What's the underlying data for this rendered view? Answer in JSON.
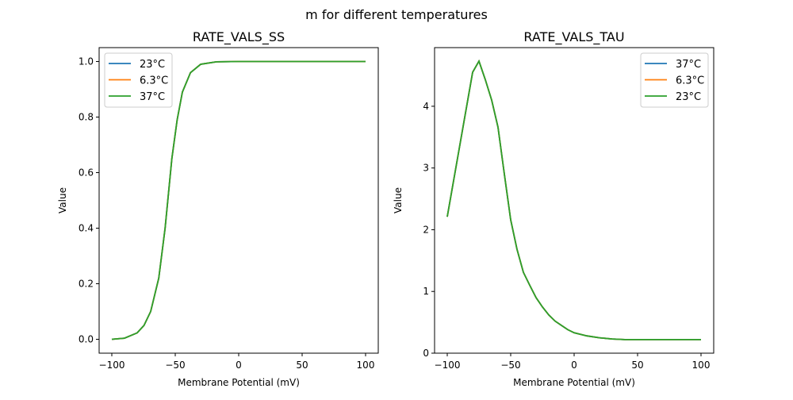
{
  "figure_title": "m for different temperatures",
  "colors": {
    "23C": "#1f77b4",
    "6.3C": "#ff7f0e",
    "37C": "#2ca02c"
  },
  "chart_data": [
    {
      "type": "line",
      "title": "RATE_VALS_SS",
      "xlabel": "Membrane Potential (mV)",
      "ylabel": "Value",
      "xlim": [
        -110,
        110
      ],
      "ylim": [
        -0.05,
        1.05
      ],
      "xticks": [
        -100,
        -50,
        0,
        50,
        100
      ],
      "xtick_labels": [
        "−100",
        "−50",
        "0",
        "50",
        "100"
      ],
      "yticks": [
        0.0,
        0.2,
        0.4,
        0.6,
        0.8,
        1.0
      ],
      "ytick_labels": [
        "0.0",
        "0.2",
        "0.4",
        "0.6",
        "0.8",
        "1.0"
      ],
      "legend_position": "top-left",
      "x": [
        -100,
        -90,
        -80,
        -74.6,
        -69.4,
        -63,
        -58,
        -52.7,
        -48.5,
        -44.4,
        -38,
        -30,
        -17.5,
        0,
        50,
        100
      ],
      "series": [
        {
          "name": "23°C",
          "color_key": "23C",
          "values": [
            0.0,
            0.004,
            0.023,
            0.05,
            0.1,
            0.22,
            0.4,
            0.65,
            0.79,
            0.89,
            0.96,
            0.99,
            0.999,
            1.0,
            1.0,
            1.0
          ]
        },
        {
          "name": "6.3°C",
          "color_key": "6.3C",
          "values": [
            0.0,
            0.004,
            0.023,
            0.05,
            0.1,
            0.22,
            0.4,
            0.65,
            0.79,
            0.89,
            0.96,
            0.99,
            0.999,
            1.0,
            1.0,
            1.0
          ]
        },
        {
          "name": "37°C",
          "color_key": "37C",
          "values": [
            0.0,
            0.004,
            0.023,
            0.05,
            0.1,
            0.22,
            0.4,
            0.65,
            0.79,
            0.89,
            0.96,
            0.99,
            0.999,
            1.0,
            1.0,
            1.0
          ]
        }
      ]
    },
    {
      "type": "line",
      "title": "RATE_VALS_TAU",
      "xlabel": "Membrane Potential (mV)",
      "ylabel": "Value",
      "xlim": [
        -110,
        110
      ],
      "ylim": [
        0,
        4.95
      ],
      "xticks": [
        -100,
        -50,
        0,
        50,
        100
      ],
      "xtick_labels": [
        "−100",
        "−50",
        "0",
        "50",
        "100"
      ],
      "yticks": [
        0,
        1,
        2,
        3,
        4
      ],
      "ytick_labels": [
        "0",
        "1",
        "2",
        "3",
        "4"
      ],
      "legend_position": "top-right",
      "x": [
        -100,
        -90,
        -80,
        -75,
        -70,
        -65,
        -60,
        -55,
        -50,
        -45,
        -40,
        -35,
        -30,
        -25,
        -20,
        -15,
        -10,
        -5,
        0,
        10,
        20,
        30,
        40,
        60,
        80,
        100
      ],
      "series": [
        {
          "name": "37°C",
          "color_key": "23C",
          "values": [
            2.21,
            3.38,
            4.55,
            4.73,
            4.43,
            4.1,
            3.66,
            2.9,
            2.16,
            1.68,
            1.31,
            1.1,
            0.9,
            0.75,
            0.62,
            0.52,
            0.45,
            0.38,
            0.33,
            0.28,
            0.25,
            0.23,
            0.22,
            0.22,
            0.22,
            0.22
          ]
        },
        {
          "name": "6.3°C",
          "color_key": "6.3C",
          "values": [
            2.21,
            3.38,
            4.55,
            4.73,
            4.43,
            4.1,
            3.66,
            2.9,
            2.16,
            1.68,
            1.31,
            1.1,
            0.9,
            0.75,
            0.62,
            0.52,
            0.45,
            0.38,
            0.33,
            0.28,
            0.25,
            0.23,
            0.22,
            0.22,
            0.22,
            0.22
          ]
        },
        {
          "name": "23°C",
          "color_key": "37C",
          "values": [
            2.21,
            3.38,
            4.55,
            4.73,
            4.43,
            4.1,
            3.66,
            2.9,
            2.16,
            1.68,
            1.31,
            1.1,
            0.9,
            0.75,
            0.62,
            0.52,
            0.45,
            0.38,
            0.33,
            0.28,
            0.25,
            0.23,
            0.22,
            0.22,
            0.22,
            0.22
          ]
        }
      ]
    }
  ]
}
